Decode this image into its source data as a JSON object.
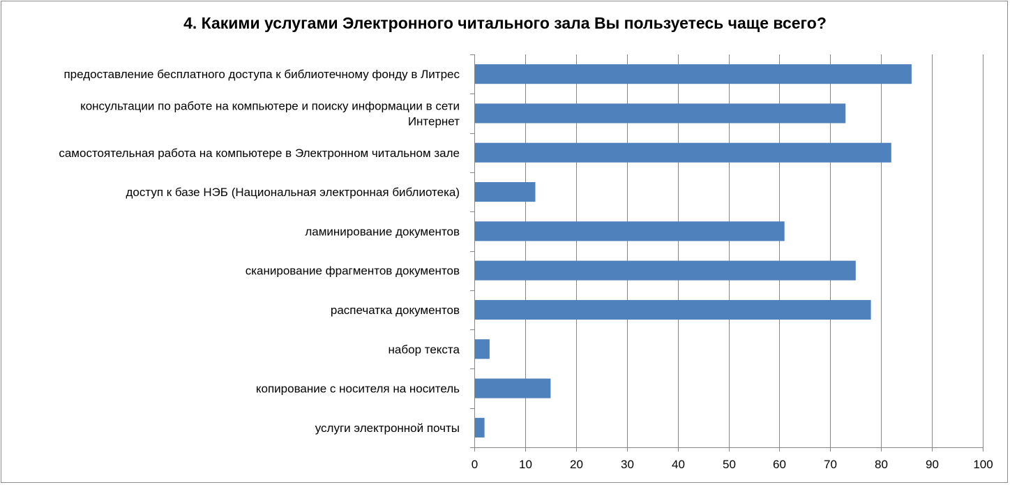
{
  "chart_data": {
    "type": "bar",
    "orientation": "horizontal",
    "title": "4. Какими услугами Электронного читального зала Вы пользуетесь чаще всего?",
    "categories": [
      [
        "предоставление бесплатного доступа к библиотечному фонду в Литрес"
      ],
      [
        "консультации по работе на компьютере и поиску информации в сети",
        "Интернет"
      ],
      [
        "самостоятельная работа на компьютере в  Электронном читальном зале"
      ],
      [
        "доступ к базе НЭБ (Национальная электронная библиотека)"
      ],
      [
        "ламинирование документов"
      ],
      [
        "сканирование фрагментов документов"
      ],
      [
        "распечатка документов"
      ],
      [
        "набор текста"
      ],
      [
        "копирование с носителя на носитель"
      ],
      [
        "услуги электронной почты"
      ]
    ],
    "values": [
      86,
      73,
      82,
      12,
      61,
      75,
      78,
      3,
      15,
      2
    ],
    "xlim": [
      0,
      100
    ],
    "xticks": [
      0,
      10,
      20,
      30,
      40,
      50,
      60,
      70,
      80,
      90,
      100
    ],
    "grid": "vertical",
    "legend": "none",
    "bar_color": "#4f81bd",
    "grid_color": "#868686"
  }
}
